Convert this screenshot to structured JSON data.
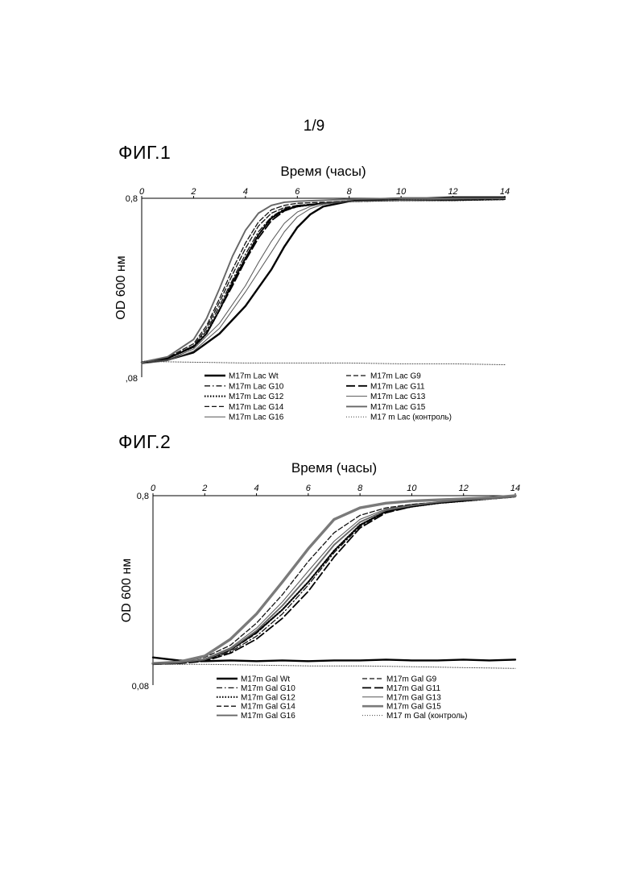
{
  "page": {
    "number": "1/9"
  },
  "figures": [
    {
      "label": "ФИГ.1"
    },
    {
      "label": "ФИГ.2"
    }
  ],
  "chart_data": [
    {
      "type": "line",
      "title": "",
      "xlabel": "Время (часы)",
      "ylabel": "OD 600 нм",
      "xlim": [
        0,
        14
      ],
      "ylim": [
        0.08,
        0.8
      ],
      "y_scale": "log",
      "x_axis_position": "top",
      "x_ticks": [
        "0",
        "2",
        "4",
        "6",
        "8",
        "10",
        "12",
        "14"
      ],
      "y_ticks": [
        "0,8",
        ",08"
      ],
      "grid": false,
      "legend": "bottom, two columns",
      "series": [
        {
          "name": "M17m Lac Wt",
          "style": "thick-solid",
          "x": [
            0,
            1,
            2,
            3,
            4,
            5,
            5.5,
            6,
            6.5,
            7,
            8,
            9,
            10,
            11,
            12,
            13,
            14
          ],
          "y": [
            0.097,
            0.1,
            0.11,
            0.14,
            0.2,
            0.32,
            0.43,
            0.55,
            0.65,
            0.72,
            0.77,
            0.79,
            0.8,
            0.8,
            0.81,
            0.81,
            0.81
          ]
        },
        {
          "name": "M17m Lac G9",
          "style": "dashed",
          "x": [
            0,
            1,
            2,
            2.5,
            3,
            3.5,
            4,
            4.5,
            5,
            5.5,
            6,
            7,
            8,
            10,
            12,
            14
          ],
          "y": [
            0.097,
            0.102,
            0.12,
            0.15,
            0.21,
            0.3,
            0.42,
            0.56,
            0.66,
            0.71,
            0.73,
            0.75,
            0.77,
            0.78,
            0.78,
            0.79
          ]
        },
        {
          "name": "M17m Lac G10",
          "style": "dash-dot",
          "x": [
            0,
            1,
            2,
            2.5,
            3,
            3.5,
            4,
            4.5,
            5,
            5.5,
            6,
            7,
            8,
            10,
            12,
            14
          ],
          "y": [
            0.097,
            0.102,
            0.12,
            0.145,
            0.2,
            0.28,
            0.39,
            0.52,
            0.63,
            0.7,
            0.73,
            0.75,
            0.77,
            0.78,
            0.78,
            0.79
          ]
        },
        {
          "name": "M17m Lac G11",
          "style": "long-dash",
          "x": [
            0,
            1,
            2,
            2.5,
            3,
            3.5,
            4,
            4.5,
            5,
            5.5,
            6,
            7,
            8,
            10,
            12,
            14
          ],
          "y": [
            0.097,
            0.102,
            0.118,
            0.14,
            0.19,
            0.26,
            0.36,
            0.48,
            0.6,
            0.68,
            0.72,
            0.75,
            0.77,
            0.78,
            0.78,
            0.79
          ]
        },
        {
          "name": "M17m Lac G12",
          "style": "dotted-bold",
          "x": [
            0,
            1,
            2,
            2.5,
            3,
            3.5,
            4,
            4.5,
            5,
            5.5,
            6,
            7,
            8,
            10,
            12,
            14
          ],
          "y": [
            0.097,
            0.102,
            0.118,
            0.14,
            0.19,
            0.27,
            0.37,
            0.5,
            0.62,
            0.69,
            0.72,
            0.75,
            0.77,
            0.78,
            0.78,
            0.79
          ]
        },
        {
          "name": "M17m Lac G13",
          "style": "thin-solid",
          "x": [
            0,
            1,
            2,
            3,
            4,
            4.5,
            5,
            5.5,
            6,
            6.5,
            7,
            8,
            10,
            12,
            14
          ],
          "y": [
            0.097,
            0.1,
            0.115,
            0.16,
            0.26,
            0.35,
            0.46,
            0.58,
            0.67,
            0.72,
            0.75,
            0.77,
            0.78,
            0.79,
            0.79
          ]
        },
        {
          "name": "M17m Lac G14",
          "style": "dashed",
          "x": [
            0,
            1,
            2,
            2.5,
            3,
            3.5,
            4,
            4.5,
            5,
            5.5,
            6,
            7,
            8,
            10,
            12,
            14
          ],
          "y": [
            0.097,
            0.103,
            0.123,
            0.155,
            0.22,
            0.32,
            0.45,
            0.59,
            0.69,
            0.73,
            0.75,
            0.76,
            0.77,
            0.78,
            0.78,
            0.79
          ]
        },
        {
          "name": "M17m Lac G15",
          "style": "grey-medium",
          "x": [
            0,
            1,
            2,
            2.5,
            3,
            3.5,
            4,
            4.5,
            5,
            5.5,
            6,
            7,
            8,
            10,
            12,
            14
          ],
          "y": [
            0.097,
            0.104,
            0.13,
            0.17,
            0.25,
            0.38,
            0.53,
            0.66,
            0.73,
            0.76,
            0.77,
            0.78,
            0.79,
            0.8,
            0.8,
            0.8
          ]
        },
        {
          "name": "M17m Lac G16",
          "style": "thin-solid",
          "x": [
            0,
            1,
            2,
            3,
            3.5,
            4,
            4.5,
            5,
            5.5,
            6,
            6.5,
            7,
            8,
            10,
            12,
            14
          ],
          "y": [
            0.095,
            0.099,
            0.112,
            0.15,
            0.19,
            0.24,
            0.31,
            0.4,
            0.52,
            0.63,
            0.7,
            0.74,
            0.77,
            0.78,
            0.79,
            0.8
          ]
        },
        {
          "name": "M17 m Lac (контроль)",
          "style": "dotted-thin",
          "x": [
            0,
            2,
            4,
            6,
            8,
            10,
            12,
            14
          ],
          "y": [
            0.098,
            0.097,
            0.096,
            0.096,
            0.096,
            0.095,
            0.095,
            0.094
          ]
        }
      ]
    },
    {
      "type": "line",
      "title": "",
      "xlabel": "Время (часы)",
      "ylabel": "OD 600 нм",
      "xlim": [
        0,
        14
      ],
      "ylim": [
        0.08,
        0.8
      ],
      "y_scale": "log",
      "x_axis_position": "top",
      "x_ticks": [
        "0",
        "2",
        "4",
        "6",
        "8",
        "10",
        "12",
        "14"
      ],
      "y_ticks": [
        "0,8",
        "0,08"
      ],
      "grid": false,
      "legend": "bottom, two columns",
      "series": [
        {
          "name": "M17m Gal Wt",
          "style": "thick-solid",
          "x": [
            0,
            1,
            2,
            3,
            4,
            5,
            6,
            7,
            8,
            9,
            10,
            11,
            12,
            13,
            14
          ],
          "y": [
            0.112,
            0.108,
            0.107,
            0.108,
            0.107,
            0.108,
            0.107,
            0.108,
            0.108,
            0.109,
            0.108,
            0.108,
            0.109,
            0.108,
            0.109
          ]
        },
        {
          "name": "M17m Gal G9",
          "style": "dashed",
          "x": [
            0,
            1,
            2,
            3,
            4,
            5,
            6,
            7,
            8,
            9,
            10,
            11,
            12,
            13,
            14
          ],
          "y": [
            0.103,
            0.104,
            0.108,
            0.122,
            0.15,
            0.2,
            0.28,
            0.41,
            0.56,
            0.66,
            0.7,
            0.73,
            0.75,
            0.77,
            0.79
          ]
        },
        {
          "name": "M17m Gal G10",
          "style": "dash-dot",
          "x": [
            0,
            1,
            2,
            3,
            4,
            5,
            6,
            7,
            8,
            9,
            10,
            11,
            12,
            13,
            14
          ],
          "y": [
            0.104,
            0.105,
            0.108,
            0.12,
            0.145,
            0.19,
            0.27,
            0.4,
            0.55,
            0.66,
            0.7,
            0.73,
            0.75,
            0.77,
            0.79
          ]
        },
        {
          "name": "M17m Gal G11",
          "style": "long-dash",
          "x": [
            0,
            1,
            2,
            3,
            4,
            5,
            6,
            7,
            8,
            9,
            10,
            11,
            12,
            13,
            14
          ],
          "y": [
            0.103,
            0.104,
            0.107,
            0.118,
            0.14,
            0.18,
            0.25,
            0.38,
            0.54,
            0.65,
            0.7,
            0.73,
            0.75,
            0.77,
            0.79
          ]
        },
        {
          "name": "M17m Gal G12",
          "style": "dotted-bold",
          "x": [
            0,
            1,
            2,
            3,
            4,
            5,
            6,
            7,
            8,
            9,
            10,
            11,
            12,
            13,
            14
          ],
          "y": [
            0.104,
            0.105,
            0.109,
            0.123,
            0.152,
            0.2,
            0.28,
            0.41,
            0.56,
            0.66,
            0.7,
            0.73,
            0.75,
            0.77,
            0.79
          ]
        },
        {
          "name": "M17m Gal G13",
          "style": "thin-solid",
          "x": [
            0,
            1,
            2,
            3,
            4,
            5,
            6,
            7,
            8,
            9,
            10,
            11,
            12,
            13,
            14
          ],
          "y": [
            0.104,
            0.105,
            0.11,
            0.126,
            0.16,
            0.22,
            0.32,
            0.46,
            0.6,
            0.68,
            0.72,
            0.74,
            0.76,
            0.77,
            0.79
          ]
        },
        {
          "name": "M17m Gal G14",
          "style": "dashed",
          "x": [
            0,
            1,
            2,
            3,
            4,
            5,
            6,
            7,
            8,
            9,
            10,
            11,
            12,
            13,
            14
          ],
          "y": [
            0.104,
            0.106,
            0.112,
            0.13,
            0.17,
            0.24,
            0.36,
            0.51,
            0.63,
            0.69,
            0.72,
            0.74,
            0.76,
            0.77,
            0.79
          ]
        },
        {
          "name": "M17m Gal G15",
          "style": "grey-thick",
          "x": [
            0,
            1,
            2,
            3,
            4,
            5,
            6,
            7,
            8,
            9,
            10,
            11,
            12,
            13,
            14
          ],
          "y": [
            0.104,
            0.106,
            0.114,
            0.14,
            0.19,
            0.28,
            0.42,
            0.6,
            0.69,
            0.73,
            0.75,
            0.76,
            0.77,
            0.78,
            0.8
          ]
        },
        {
          "name": "M17m Gal G16",
          "style": "grey-medium",
          "x": [
            0,
            1,
            2,
            3,
            4,
            5,
            6,
            7,
            8,
            9,
            10,
            11,
            12,
            13,
            14
          ],
          "y": [
            0.104,
            0.105,
            0.109,
            0.124,
            0.155,
            0.21,
            0.3,
            0.44,
            0.58,
            0.67,
            0.71,
            0.74,
            0.76,
            0.77,
            0.79
          ]
        },
        {
          "name": "M17 m Gal (контроль)",
          "style": "dotted-thin",
          "x": [
            0,
            2,
            4,
            6,
            8,
            10,
            12,
            14
          ],
          "y": [
            0.103,
            0.103,
            0.102,
            0.101,
            0.101,
            0.1,
            0.099,
            0.098
          ]
        }
      ]
    }
  ]
}
